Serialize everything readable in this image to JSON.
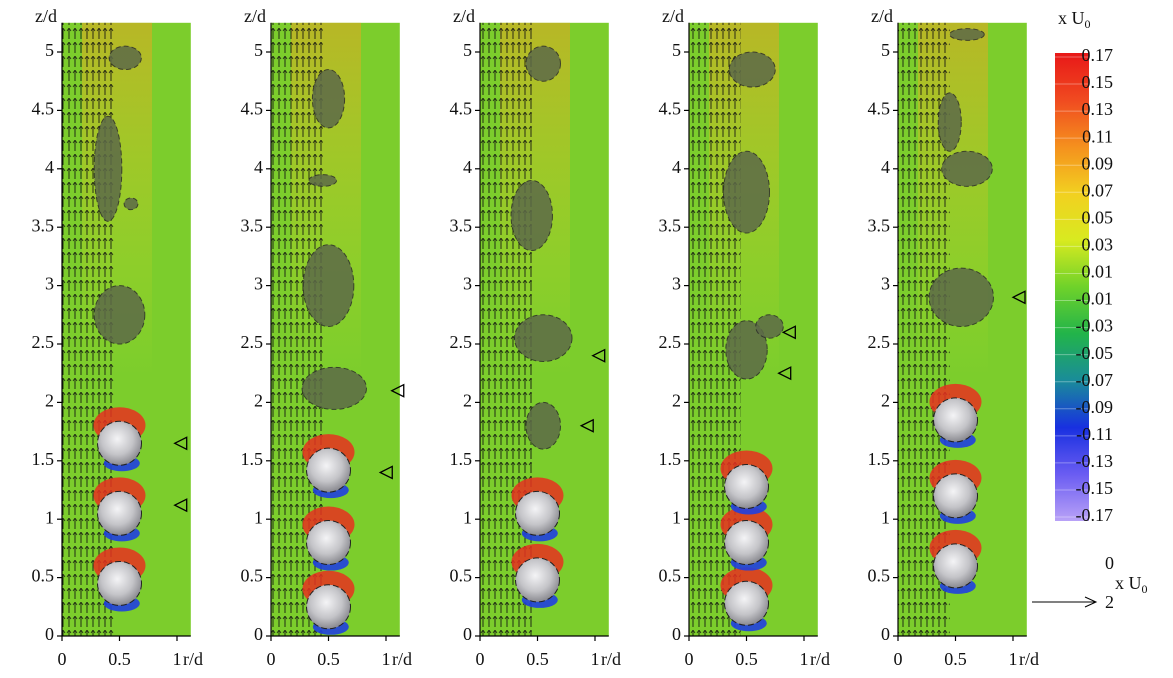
{
  "chart_data": [
    {
      "type": "contour",
      "xlabel": "r/d",
      "ylabel": "z/d",
      "xlim": [
        0,
        1.12
      ],
      "ylim": [
        0,
        5.25
      ],
      "xticks": [
        0,
        0.5,
        1
      ],
      "yticks": [
        0,
        0.5,
        1,
        1.5,
        2,
        2.5,
        3,
        3.5,
        4,
        4.5,
        5
      ]
    },
    {
      "type": "contour",
      "xlabel": "r/d",
      "ylabel": "z/d",
      "xlim": [
        0,
        1.12
      ],
      "ylim": [
        0,
        5.25
      ],
      "xticks": [
        0,
        0.5,
        1
      ],
      "yticks": [
        0,
        0.5,
        1,
        1.5,
        2,
        2.5,
        3,
        3.5,
        4,
        4.5,
        5
      ]
    },
    {
      "type": "contour",
      "xlabel": "r/d",
      "ylabel": "z/d",
      "xlim": [
        0,
        1.12
      ],
      "ylim": [
        0,
        5.25
      ],
      "xticks": [
        0,
        0.5,
        1
      ],
      "yticks": [
        0,
        0.5,
        1,
        1.5,
        2,
        2.5,
        3,
        3.5,
        4,
        4.5,
        5
      ]
    },
    {
      "type": "contour",
      "xlabel": "r/d",
      "ylabel": "z/d",
      "xlim": [
        0,
        1.12
      ],
      "ylim": [
        0,
        5.25
      ],
      "xticks": [
        0,
        0.5,
        1
      ],
      "yticks": [
        0,
        0.5,
        1,
        1.5,
        2,
        2.5,
        3,
        3.5,
        4,
        4.5,
        5
      ]
    },
    {
      "type": "contour",
      "xlabel": "r/d",
      "ylabel": "z/d",
      "xlim": [
        0,
        1.12
      ],
      "ylim": [
        0,
        5.25
      ],
      "xticks": [
        0,
        0.5,
        1
      ],
      "yticks": [
        0,
        0.5,
        1,
        1.5,
        2,
        2.5,
        3,
        3.5,
        4,
        4.5,
        5
      ]
    }
  ],
  "colorbar": {
    "label": "x U",
    "label_subscript": "0",
    "clim": [
      -0.17,
      0.17
    ],
    "ticks": [
      0.17,
      0.15,
      0.13,
      0.11,
      0.09,
      0.07,
      0.05,
      0.03,
      0.01,
      -0.01,
      -0.03,
      -0.05,
      -0.07,
      -0.09,
      -0.11,
      -0.13,
      -0.15,
      -0.17
    ],
    "colors": [
      "#e81818",
      "#f04a20",
      "#f5901e",
      "#f2d020",
      "#d8ea20",
      "#6fd22a",
      "#22b44a",
      "#1a8c9a",
      "#1830e0",
      "#6a5cf2",
      "#b9a2f7"
    ]
  },
  "reference_vector": {
    "top": "0",
    "label": "x U",
    "subscript": "0",
    "bottom": "2"
  }
}
